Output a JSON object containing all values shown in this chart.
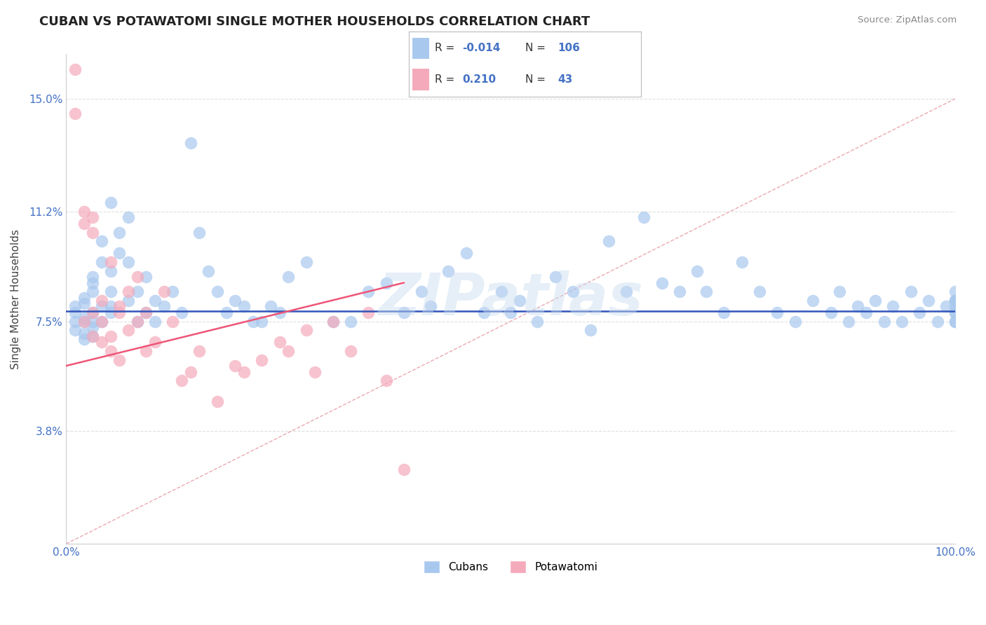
{
  "title": "CUBAN VS POTAWATOMI SINGLE MOTHER HOUSEHOLDS CORRELATION CHART",
  "source": "Source: ZipAtlas.com",
  "ylabel": "Single Mother Households",
  "xlim": [
    0,
    100
  ],
  "ylim": [
    0,
    16.5
  ],
  "yticks": [
    3.8,
    7.5,
    11.2,
    15.0
  ],
  "xtick_positions": [
    0,
    10,
    20,
    30,
    40,
    50,
    60,
    70,
    80,
    90,
    100
  ],
  "xtick_labels": [
    "0.0%",
    "",
    "",
    "",
    "",
    "",
    "",
    "",
    "",
    "",
    "100.0%"
  ],
  "legend_r_cuban": "-0.014",
  "legend_n_cuban": "106",
  "legend_r_pota": "0.210",
  "legend_n_pota": "43",
  "blue_scatter_color": "#A8C8EE",
  "pink_scatter_color": "#F4AABB",
  "blue_line_color": "#3355BB",
  "pink_line_color": "#EE5577",
  "ref_line_color": "#E8A0AA",
  "grid_color": "#E0E0E0",
  "watermark_color": "#C8DCF0",
  "title_color": "#222222",
  "tick_color": "#4472C4",
  "watermark_text": "ZIPatlas",
  "cuban_x": [
    1,
    1,
    1,
    1,
    2,
    2,
    2,
    2,
    2,
    2,
    3,
    3,
    3,
    3,
    3,
    3,
    3,
    4,
    4,
    4,
    4,
    5,
    5,
    5,
    5,
    5,
    6,
    6,
    7,
    7,
    7,
    8,
    8,
    9,
    9,
    10,
    10,
    11,
    12,
    13,
    14,
    15,
    16,
    17,
    18,
    19,
    20,
    21,
    22,
    23,
    24,
    25,
    27,
    30,
    32,
    34,
    36,
    38,
    40,
    41,
    43,
    45,
    47,
    49,
    50,
    51,
    53,
    55,
    57,
    59,
    61,
    63,
    65,
    67,
    69,
    71,
    72,
    74,
    76,
    78,
    80,
    82,
    84,
    86,
    87,
    88,
    89,
    90,
    91,
    92,
    93,
    94,
    95,
    96,
    97,
    98,
    99,
    100,
    100,
    100,
    100,
    100,
    100,
    100,
    100,
    100
  ],
  "cuban_y": [
    7.5,
    7.8,
    7.2,
    8.0,
    7.6,
    7.1,
    8.3,
    6.9,
    7.5,
    8.1,
    7.5,
    8.5,
    7.0,
    9.0,
    7.8,
    7.3,
    8.8,
    9.5,
    10.2,
    8.0,
    7.5,
    11.5,
    8.5,
    9.2,
    7.8,
    8.0,
    9.8,
    10.5,
    8.2,
    11.0,
    9.5,
    7.5,
    8.5,
    7.8,
    9.0,
    7.5,
    8.2,
    8.0,
    8.5,
    7.8,
    13.5,
    10.5,
    9.2,
    8.5,
    7.8,
    8.2,
    8.0,
    7.5,
    7.5,
    8.0,
    7.8,
    9.0,
    9.5,
    7.5,
    7.5,
    8.5,
    8.8,
    7.8,
    8.5,
    8.0,
    9.2,
    9.8,
    7.8,
    8.5,
    7.8,
    8.2,
    7.5,
    9.0,
    8.5,
    7.2,
    10.2,
    8.5,
    11.0,
    8.8,
    8.5,
    9.2,
    8.5,
    7.8,
    9.5,
    8.5,
    7.8,
    7.5,
    8.2,
    7.8,
    8.5,
    7.5,
    8.0,
    7.8,
    8.2,
    7.5,
    8.0,
    7.5,
    8.5,
    7.8,
    8.2,
    7.5,
    8.0,
    7.8,
    8.2,
    8.5,
    7.5,
    7.8,
    8.0,
    8.2,
    7.5,
    8.2
  ],
  "pota_x": [
    1,
    1,
    2,
    2,
    2,
    3,
    3,
    3,
    3,
    4,
    4,
    4,
    5,
    5,
    5,
    6,
    6,
    6,
    7,
    7,
    8,
    8,
    9,
    9,
    10,
    11,
    12,
    13,
    14,
    15,
    17,
    19,
    20,
    22,
    24,
    25,
    27,
    28,
    30,
    32,
    34,
    36,
    38
  ],
  "pota_y": [
    16.0,
    14.5,
    11.2,
    10.8,
    7.5,
    11.0,
    10.5,
    7.8,
    7.0,
    7.5,
    6.8,
    8.2,
    7.0,
    9.5,
    6.5,
    7.8,
    6.2,
    8.0,
    8.5,
    7.2,
    9.0,
    7.5,
    7.8,
    6.5,
    6.8,
    8.5,
    7.5,
    5.5,
    5.8,
    6.5,
    4.8,
    6.0,
    5.8,
    6.2,
    6.8,
    6.5,
    7.2,
    5.8,
    7.5,
    6.5,
    7.8,
    5.5,
    2.5
  ],
  "blue_trend_y": 7.85,
  "pink_trend_x0": 0,
  "pink_trend_x1": 38,
  "pink_trend_y0": 6.0,
  "pink_trend_y1": 8.8,
  "ref_line_x0": 0,
  "ref_line_x1": 100,
  "ref_line_y0": 0,
  "ref_line_y1": 15.0
}
